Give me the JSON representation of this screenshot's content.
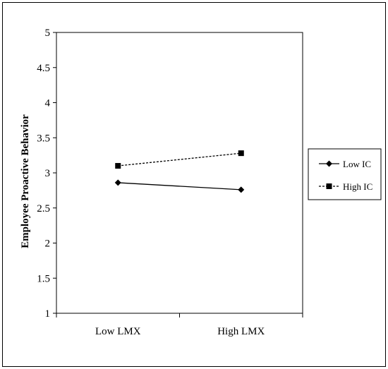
{
  "chart_data": {
    "type": "line",
    "title": "",
    "xlabel": "",
    "ylabel": "Employee Proactive Behavior",
    "categories": [
      "Low LMX",
      "High LMX"
    ],
    "ylim": [
      1,
      5
    ],
    "yticks": [
      "1",
      "1.5",
      "2",
      "2.5",
      "3",
      "3.5",
      "4",
      "4.5",
      "5"
    ],
    "grid": false,
    "legend_position": "right",
    "series": [
      {
        "name": "Low IC",
        "values": [
          2.86,
          2.76
        ],
        "style": "solid",
        "marker": "diamond",
        "color": "#000000"
      },
      {
        "name": "High IC",
        "values": [
          3.1,
          3.28
        ],
        "style": "dashed",
        "marker": "square",
        "color": "#000000"
      }
    ]
  }
}
